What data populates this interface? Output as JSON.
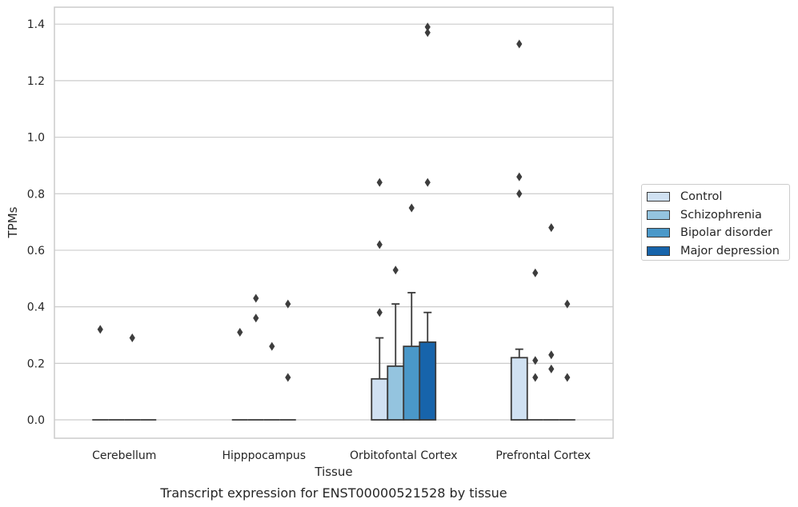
{
  "chart_data": {
    "type": "bar",
    "caption": "Transcript expression for ENST00000521528 by tissue",
    "xlabel": "Tissue",
    "ylabel": "TPMs",
    "ylim": [
      -0.065,
      1.46
    ],
    "yticks": [
      "0.0",
      "0.2",
      "0.4",
      "0.6",
      "0.8",
      "1.0",
      "1.2",
      "1.4"
    ],
    "grid": "horizontal",
    "legend_position": "right",
    "categories": [
      "Cerebellum",
      "Hipppocampus",
      "Orbitofontal Cortex",
      "Prefrontal Cortex"
    ],
    "series": [
      {
        "name": "Control",
        "color": "#d0e1f2",
        "values": [
          0.0,
          0.0,
          0.145,
          0.22
        ],
        "err_upper": [
          0.0,
          0.0,
          0.29,
          0.25
        ],
        "outliers": [
          [
            0.32
          ],
          [
            0.31
          ],
          [
            0.84,
            0.62,
            0.38
          ],
          [
            1.33,
            0.86,
            0.8
          ]
        ]
      },
      {
        "name": "Schizophrenia",
        "color": "#94c4df",
        "values": [
          0.0,
          0.0,
          0.19,
          0.0
        ],
        "err_upper": [
          0.0,
          0.0,
          0.41,
          0.0
        ],
        "outliers": [
          [],
          [
            0.43,
            0.36
          ],
          [
            0.53
          ],
          [
            0.52,
            0.21,
            0.15
          ]
        ]
      },
      {
        "name": "Bipolar disorder",
        "color": "#4a98c9",
        "values": [
          0.0,
          0.0,
          0.26,
          0.0
        ],
        "err_upper": [
          0.0,
          0.0,
          0.45,
          0.0
        ],
        "outliers": [
          [
            0.29
          ],
          [
            0.26
          ],
          [
            0.75
          ],
          [
            0.68,
            0.23,
            0.18
          ]
        ]
      },
      {
        "name": "Major depression",
        "color": "#1764ab",
        "values": [
          0.0,
          0.0,
          0.275,
          0.0
        ],
        "err_upper": [
          0.0,
          0.0,
          0.38,
          0.0
        ],
        "outliers": [
          [],
          [
            0.41,
            0.15
          ],
          [
            1.39,
            1.37,
            0.84
          ],
          [
            0.41,
            0.15
          ]
        ]
      }
    ]
  }
}
